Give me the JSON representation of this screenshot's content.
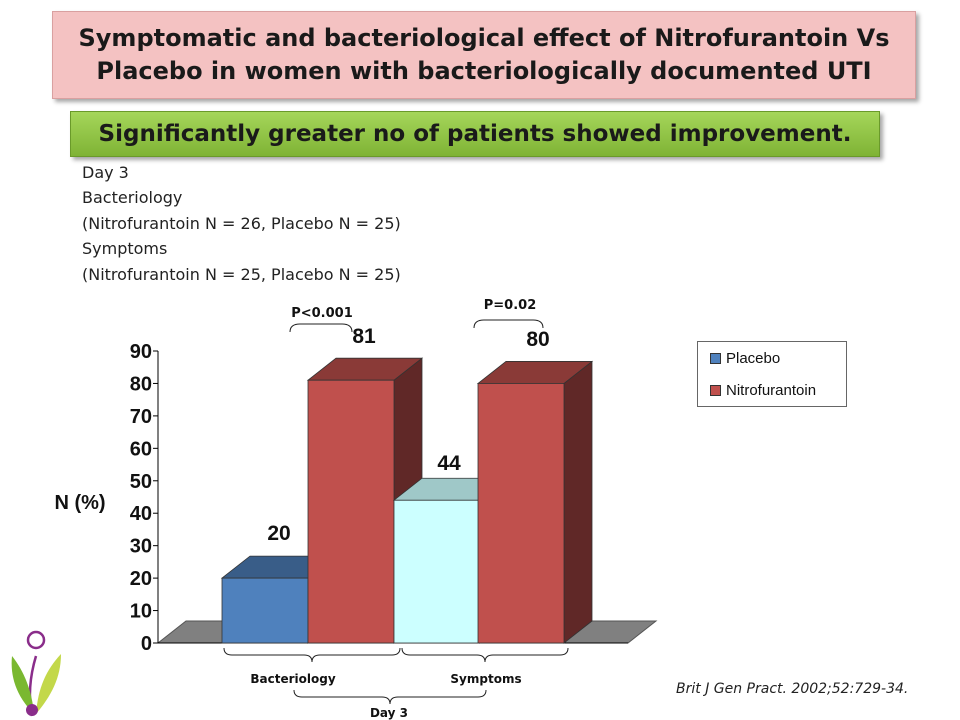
{
  "slide": {
    "title_line1": "Symptomatic and bacteriological  effect of Nitrofurantoin Vs",
    "title_line2": "Placebo in women with bacteriologically documented UTI",
    "subtitle": "Significantly greater no of patients showed improvement.",
    "info_lines": [
      "Day 3",
      "Bacteriology",
      "(Nitrofurantoin N = 26, Placebo N = 25)",
      "Symptoms",
      "(Nitrofurantoin N = 25, Placebo N = 25)"
    ],
    "citation": "Brit J Gen Pract. 2002;52:729-34."
  },
  "chart_data": {
    "type": "bar",
    "categories": [
      "Bacteriology",
      "Symptoms"
    ],
    "group_label": "Day 3",
    "ylabel": "N (%)",
    "ylim": [
      0,
      90
    ],
    "yticks": [
      0,
      10,
      20,
      30,
      40,
      50,
      60,
      70,
      80,
      90
    ],
    "series": [
      {
        "name": "Placebo",
        "values": [
          20,
          44
        ],
        "colors": [
          "#4f81bd",
          "#ccffff"
        ]
      },
      {
        "name": "Nitrofurantoin",
        "values": [
          81,
          80
        ],
        "colors": [
          "#c0504d",
          "#c0504d"
        ]
      }
    ],
    "data_labels": [
      "20",
      "81",
      "44",
      "80"
    ],
    "annotations": [
      "P<0.001",
      "P=0.02"
    ],
    "legend_position": "right",
    "legend_colors": [
      "#4f81bd",
      "#c0504d"
    ]
  }
}
